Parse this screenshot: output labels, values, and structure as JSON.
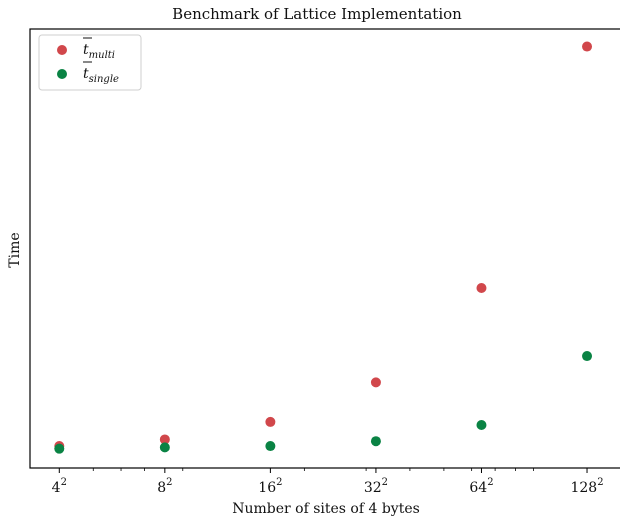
{
  "chart_data": {
    "type": "scatter",
    "title": "Benchmark of Lattice Implementation",
    "xlabel": "Number of sites of 4 bytes",
    "ylabel": "Time",
    "x_scale": "log2",
    "y_ticks_shown": false,
    "grid": false,
    "legend_position": "top-left",
    "x_ticks": [
      {
        "value": 4,
        "base": "4",
        "exp": "2"
      },
      {
        "value": 8,
        "base": "8",
        "exp": "2"
      },
      {
        "value": 16,
        "base": "16",
        "exp": "2"
      },
      {
        "value": 32,
        "base": "32",
        "exp": "2"
      },
      {
        "value": 64,
        "base": "64",
        "exp": "2"
      },
      {
        "value": 128,
        "base": "128",
        "exp": "2"
      }
    ],
    "xlim": [
      3.3,
      160
    ],
    "ylim": [
      0,
      1
    ],
    "series": [
      {
        "key": "multi",
        "legend_main": "t",
        "legend_sub": "multi",
        "color": "#d1474b",
        "points": [
          {
            "x": 4,
            "y": 0.05
          },
          {
            "x": 8,
            "y": 0.065
          },
          {
            "x": 16,
            "y": 0.105
          },
          {
            "x": 32,
            "y": 0.195
          },
          {
            "x": 64,
            "y": 0.41
          },
          {
            "x": 128,
            "y": 0.96
          }
        ]
      },
      {
        "key": "single",
        "legend_main": "t",
        "legend_sub": "single",
        "color": "#0a8344",
        "points": [
          {
            "x": 4,
            "y": 0.044
          },
          {
            "x": 8,
            "y": 0.047
          },
          {
            "x": 16,
            "y": 0.05
          },
          {
            "x": 32,
            "y": 0.061
          },
          {
            "x": 64,
            "y": 0.098
          },
          {
            "x": 128,
            "y": 0.255
          }
        ]
      }
    ]
  }
}
